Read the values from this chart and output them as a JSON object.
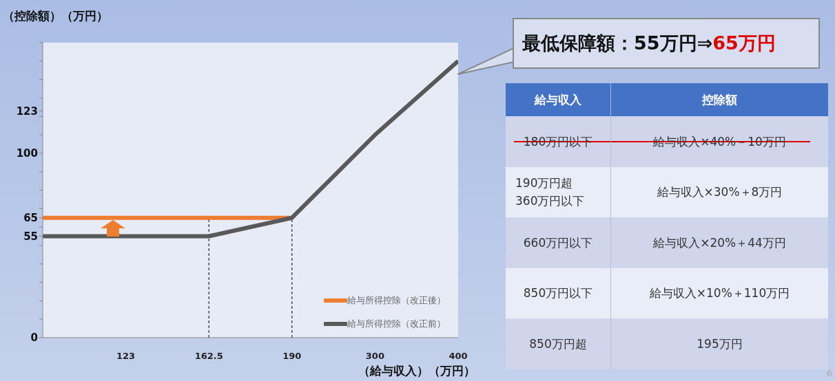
{
  "chart_data": [
    {
      "type": "line",
      "xlabel": "（給与収入）（万円）",
      "ylabel": "（控除額）（万円）",
      "categories": [
        null,
        "123",
        "162.5",
        "190",
        "300",
        "400"
      ],
      "series": [
        {
          "name": "給与所得控除（改正後）",
          "color": "#ed7d31",
          "values": [
            65,
            65,
            65,
            65,
            null,
            null
          ]
        },
        {
          "name": "給与所得控除（改正前）",
          "color": "#595959",
          "values": [
            55,
            55,
            55,
            65,
            110,
            150
          ]
        }
      ],
      "ylim": [
        0,
        160
      ],
      "yticks": [
        0,
        {
          "value": 10,
          "label": null
        },
        {
          "value": 20,
          "label": null
        },
        {
          "value": 30,
          "label": null
        },
        {
          "value": 40,
          "label": null
        },
        {
          "value": 50,
          "label": null
        },
        55,
        {
          "value": 60,
          "label": null
        },
        65,
        {
          "value": 70,
          "label": null
        },
        {
          "value": 80,
          "label": null
        },
        {
          "value": 90,
          "label": null
        },
        100,
        {
          "value": 110,
          "label": null
        },
        {
          "value": 120,
          "label": null
        },
        123,
        {
          "value": 130,
          "label": null
        },
        {
          "value": 140,
          "label": null
        },
        {
          "value": 150,
          "label": null
        },
        {
          "value": 160,
          "label": null
        }
      ],
      "ref_lines": [
        {
          "axis": "x",
          "value": "162.5",
          "line_style": "dashed",
          "color": "#000000"
        },
        {
          "axis": "x",
          "value": "190",
          "line_style": "dashed",
          "color": "#000000"
        }
      ],
      "legend": "bottom right",
      "marker": "none",
      "line_style": "solid",
      "annotations": [
        "最低保障額：55万円⇒",
        "65万円"
      ]
    },
    {
      "type": "other",
      "categories": [
        "給与収入",
        "控除額"
      ],
      "cell_labels": [
        [
          "180万円以下",
          "給与収入×40%－10万円"
        ],
        [
          "190万円超\n360万円以下",
          "給与収入×30%＋8万円"
        ],
        [
          "660万円以下",
          "給与収入×20%＋44万円"
        ],
        [
          "850万円以下",
          "給与収入×10%＋110万円"
        ],
        [
          "850万円超",
          "195万円"
        ]
      ],
      "annotations": [
        "6"
      ]
    }
  ]
}
